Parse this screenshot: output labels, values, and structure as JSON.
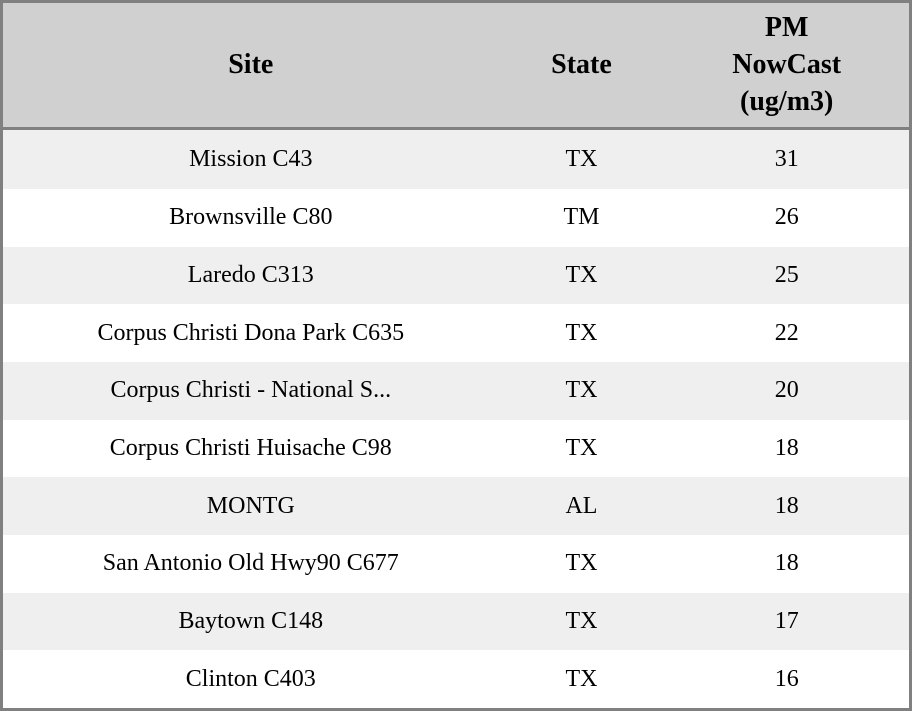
{
  "colors": {
    "outer_border": "#808080",
    "header_bg": "#d0d0d0",
    "row_odd_bg": "#efefef",
    "row_even_bg": "#ffffff",
    "text": "#000000"
  },
  "table": {
    "headers": {
      "site": "Site",
      "state": "State",
      "pm": "PM\nNowCast\n(ug/m3)"
    },
    "rows": [
      {
        "site": "Mission C43",
        "state": "TX",
        "pm": "31"
      },
      {
        "site": "Brownsville C80",
        "state": "TM",
        "pm": "26"
      },
      {
        "site": "Laredo C313",
        "state": "TX",
        "pm": "25"
      },
      {
        "site": "Corpus Christi Dona Park C635",
        "state": "TX",
        "pm": "22"
      },
      {
        "site": "Corpus Christi - National S...",
        "state": "TX",
        "pm": "20"
      },
      {
        "site": "Corpus Christi Huisache C98",
        "state": "TX",
        "pm": "18"
      },
      {
        "site": "MONTG",
        "state": "AL",
        "pm": "18"
      },
      {
        "site": "San Antonio Old Hwy90 C677",
        "state": "TX",
        "pm": "18"
      },
      {
        "site": "Baytown C148",
        "state": "TX",
        "pm": "17"
      },
      {
        "site": "Clinton C403",
        "state": "TX",
        "pm": "16"
      }
    ]
  },
  "chart_data": {
    "type": "table",
    "title": "PM NowCast by Site",
    "columns": [
      "Site",
      "State",
      "PM NowCast (ug/m3)"
    ],
    "categories": [
      "Mission C43",
      "Brownsville C80",
      "Laredo C313",
      "Corpus Christi Dona Park C635",
      "Corpus Christi - National S...",
      "Corpus Christi Huisache C98",
      "MONTG",
      "San Antonio Old Hwy90 C677",
      "Baytown C148",
      "Clinton C403"
    ],
    "states": [
      "TX",
      "TM",
      "TX",
      "TX",
      "TX",
      "TX",
      "AL",
      "TX",
      "TX",
      "TX"
    ],
    "values": [
      31,
      26,
      25,
      22,
      20,
      18,
      18,
      18,
      17,
      16
    ],
    "ylabel": "PM NowCast (ug/m3)"
  }
}
